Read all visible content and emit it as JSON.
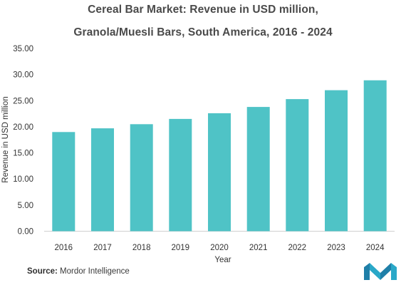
{
  "chart_data": {
    "type": "bar",
    "title_line1": "Cereal Bar Market: Revenue in USD million,",
    "title_line2": "Granola/Muesli Bars, South America, 2016 - 2024",
    "xlabel": "Year",
    "ylabel": "Revenue in USD million",
    "categories": [
      "2016",
      "2017",
      "2018",
      "2019",
      "2020",
      "2021",
      "2022",
      "2023",
      "2024"
    ],
    "values": [
      19.0,
      19.7,
      20.5,
      21.5,
      22.6,
      23.8,
      25.3,
      27.0,
      28.9
    ],
    "yticks": [
      "0.00",
      "5.00",
      "10.00",
      "15.00",
      "20.00",
      "25.00",
      "30.00",
      "35.00"
    ],
    "ylim": [
      0,
      35
    ],
    "grid": false,
    "bar_color": "#4fc3c6"
  },
  "source": {
    "label": "Source:",
    "text": "Mordor Intelligence"
  },
  "logo_icon": "mordor-intelligence-logo"
}
